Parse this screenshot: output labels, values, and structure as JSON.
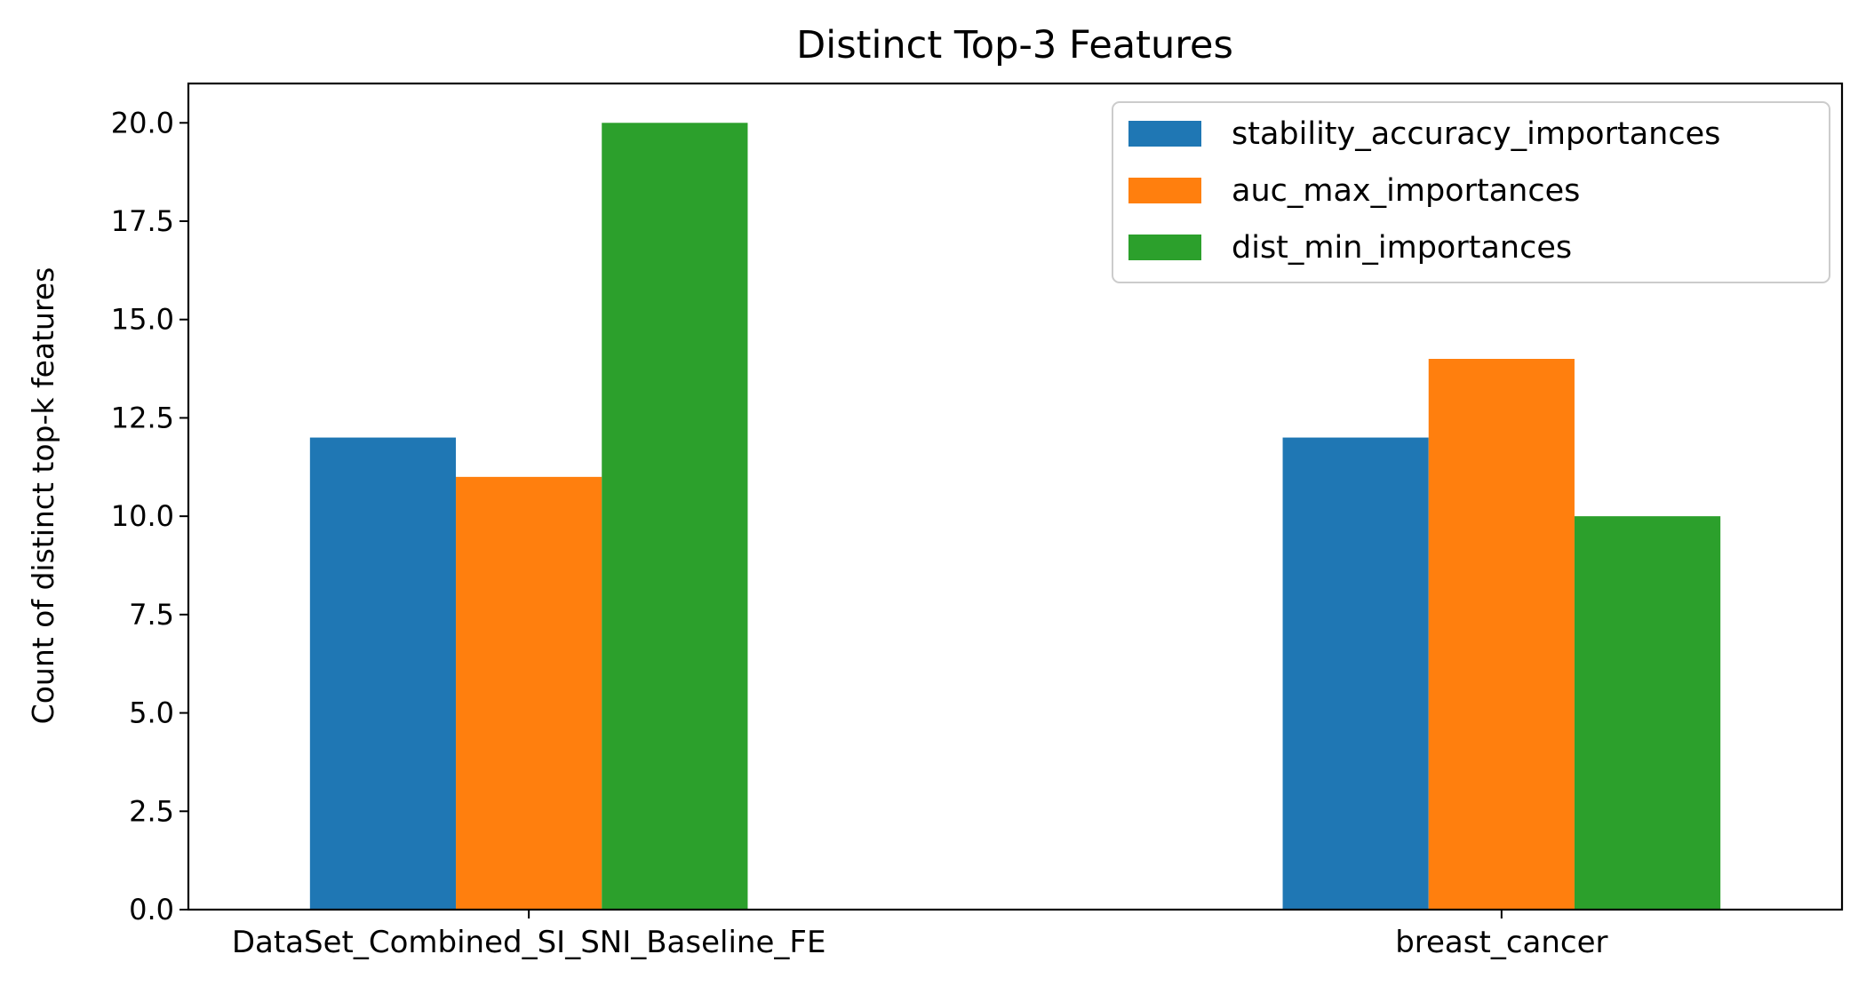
{
  "chart_data": {
    "type": "bar",
    "title": "Distinct Top-3 Features",
    "xlabel": "",
    "ylabel": "Count of distinct top-k features",
    "categories": [
      "DataSet_Combined_SI_SNI_Baseline_FE",
      "breast_cancer"
    ],
    "series": [
      {
        "name": "stability_accuracy_importances",
        "color": "#1f77b4",
        "values": [
          12,
          12
        ]
      },
      {
        "name": "auc_max_importances",
        "color": "#ff7f0e",
        "values": [
          11,
          14
        ]
      },
      {
        "name": "dist_min_importances",
        "color": "#2ca02c",
        "values": [
          20,
          10
        ]
      }
    ],
    "ylim": [
      0,
      21
    ],
    "yticks": [
      "0.0",
      "2.5",
      "5.0",
      "7.5",
      "10.0",
      "12.5",
      "15.0",
      "17.5",
      "20.0"
    ],
    "grid": false,
    "legend_position": "top-right"
  }
}
